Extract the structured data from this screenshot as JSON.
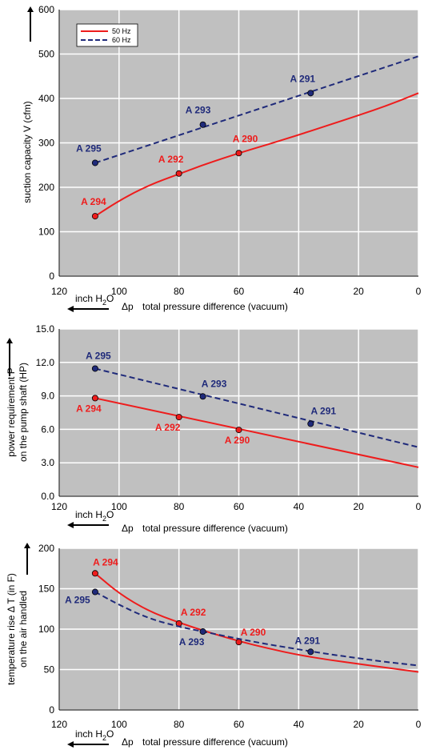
{
  "chart_data": [
    {
      "type": "line",
      "ylabel": "suction capacity V (cfm)",
      "xlabel_symbol": "Δp",
      "xlabel": "total pressure difference (vacuum)",
      "unit_label": "inch H",
      "unit_sub": "2",
      "unit_tail": "O",
      "xlim": [
        120,
        0
      ],
      "ylim": [
        0,
        600
      ],
      "xticks": [
        "120",
        "100",
        "80",
        "60",
        "40",
        "20",
        "0"
      ],
      "yticks": [
        "0",
        "100",
        "200",
        "300",
        "400",
        "500",
        "600"
      ],
      "legend": {
        "position": "top-left",
        "entries": [
          "50 Hz",
          "60 Hz"
        ]
      },
      "series": [
        {
          "name": "50 Hz",
          "color": "#ee1c1c",
          "style": "solid",
          "curve_x": [
            108,
            100,
            90,
            80,
            70,
            60,
            50,
            40,
            30,
            20,
            10,
            0
          ],
          "curve_y": [
            135,
            170,
            205,
            230,
            255,
            277,
            297,
            318,
            340,
            362,
            385,
            412
          ],
          "points": [
            {
              "label": "A 294",
              "x": 108,
              "y": 135
            },
            {
              "label": "A 292",
              "x": 80,
              "y": 231
            },
            {
              "label": "A 290",
              "x": 60,
              "y": 277
            }
          ]
        },
        {
          "name": "60 Hz",
          "color": "#1f2a7a",
          "style": "dashed",
          "curve_x": [
            108,
            0
          ],
          "curve_y": [
            255,
            495
          ],
          "points": [
            {
              "label": "A 295",
              "x": 108,
              "y": 255
            },
            {
              "label": "A 293",
              "x": 72,
              "y": 341
            },
            {
              "label": "A 291",
              "x": 36,
              "y": 412
            }
          ]
        }
      ]
    },
    {
      "type": "line",
      "ylabel_line1": "power requirement P",
      "ylabel_line2": "on the pump shaft (HP)",
      "xlabel_symbol": "Δp",
      "xlabel": "total pressure difference (vacuum)",
      "unit_label": "inch H",
      "unit_sub": "2",
      "unit_tail": "O",
      "xlim": [
        120,
        0
      ],
      "ylim": [
        0,
        15
      ],
      "xticks": [
        "120",
        "100",
        "80",
        "60",
        "40",
        "20",
        "0"
      ],
      "yticks": [
        "0.0",
        "3.0",
        "6.0",
        "9.0",
        "12.0",
        "15.0"
      ],
      "series": [
        {
          "name": "50 Hz",
          "color": "#ee1c1c",
          "style": "solid",
          "curve_x": [
            108,
            0
          ],
          "curve_y": [
            8.8,
            2.6
          ],
          "points": [
            {
              "label": "A 294",
              "x": 108,
              "y": 8.8
            },
            {
              "label": "A 292",
              "x": 80,
              "y": 7.1
            },
            {
              "label": "A 290",
              "x": 60,
              "y": 5.95
            }
          ]
        },
        {
          "name": "60 Hz",
          "color": "#1f2a7a",
          "style": "dashed",
          "curve_x": [
            108,
            0
          ],
          "curve_y": [
            11.45,
            4.4
          ],
          "points": [
            {
              "label": "A 295",
              "x": 108,
              "y": 11.45
            },
            {
              "label": "A 293",
              "x": 72,
              "y": 8.95
            },
            {
              "label": "A 291",
              "x": 36,
              "y": 6.5
            }
          ]
        }
      ]
    },
    {
      "type": "line",
      "ylabel_line1": "temperature rise Δ T   (in F)",
      "ylabel_line2": "on the air handled",
      "xlabel_symbol": "Δp",
      "xlabel": "total pressure difference (vacuum)",
      "unit_label": "inch H",
      "unit_sub": "2",
      "unit_tail": "O",
      "xlim": [
        120,
        0
      ],
      "ylim": [
        0,
        200
      ],
      "xticks": [
        "120",
        "100",
        "80",
        "60",
        "40",
        "20",
        "0"
      ],
      "yticks": [
        "0",
        "50",
        "100",
        "150",
        "200"
      ],
      "series": [
        {
          "name": "50 Hz",
          "color": "#ee1c1c",
          "style": "solid",
          "curve_x": [
            108,
            100,
            90,
            80,
            70,
            60,
            50,
            40,
            30,
            20,
            10,
            0
          ],
          "curve_y": [
            169,
            144,
            122,
            108,
            96,
            85,
            76,
            68,
            62,
            57,
            52,
            47
          ],
          "points": [
            {
              "label": "A 294",
              "x": 108,
              "y": 169
            },
            {
              "label": "A 292",
              "x": 80,
              "y": 107
            },
            {
              "label": "A 290",
              "x": 60,
              "y": 84
            }
          ]
        },
        {
          "name": "60 Hz",
          "color": "#1f2a7a",
          "style": "dashed",
          "curve_x": [
            108,
            100,
            90,
            80,
            72,
            60,
            50,
            40,
            30,
            20,
            10,
            0
          ],
          "curve_y": [
            146,
            130,
            113,
            103,
            97,
            88,
            81,
            75,
            69,
            64,
            59,
            55
          ],
          "points": [
            {
              "label": "A 295",
              "x": 108,
              "y": 146
            },
            {
              "label": "A 293",
              "x": 72,
              "y": 97
            },
            {
              "label": "A 291",
              "x": 36,
              "y": 72
            }
          ]
        }
      ]
    }
  ]
}
